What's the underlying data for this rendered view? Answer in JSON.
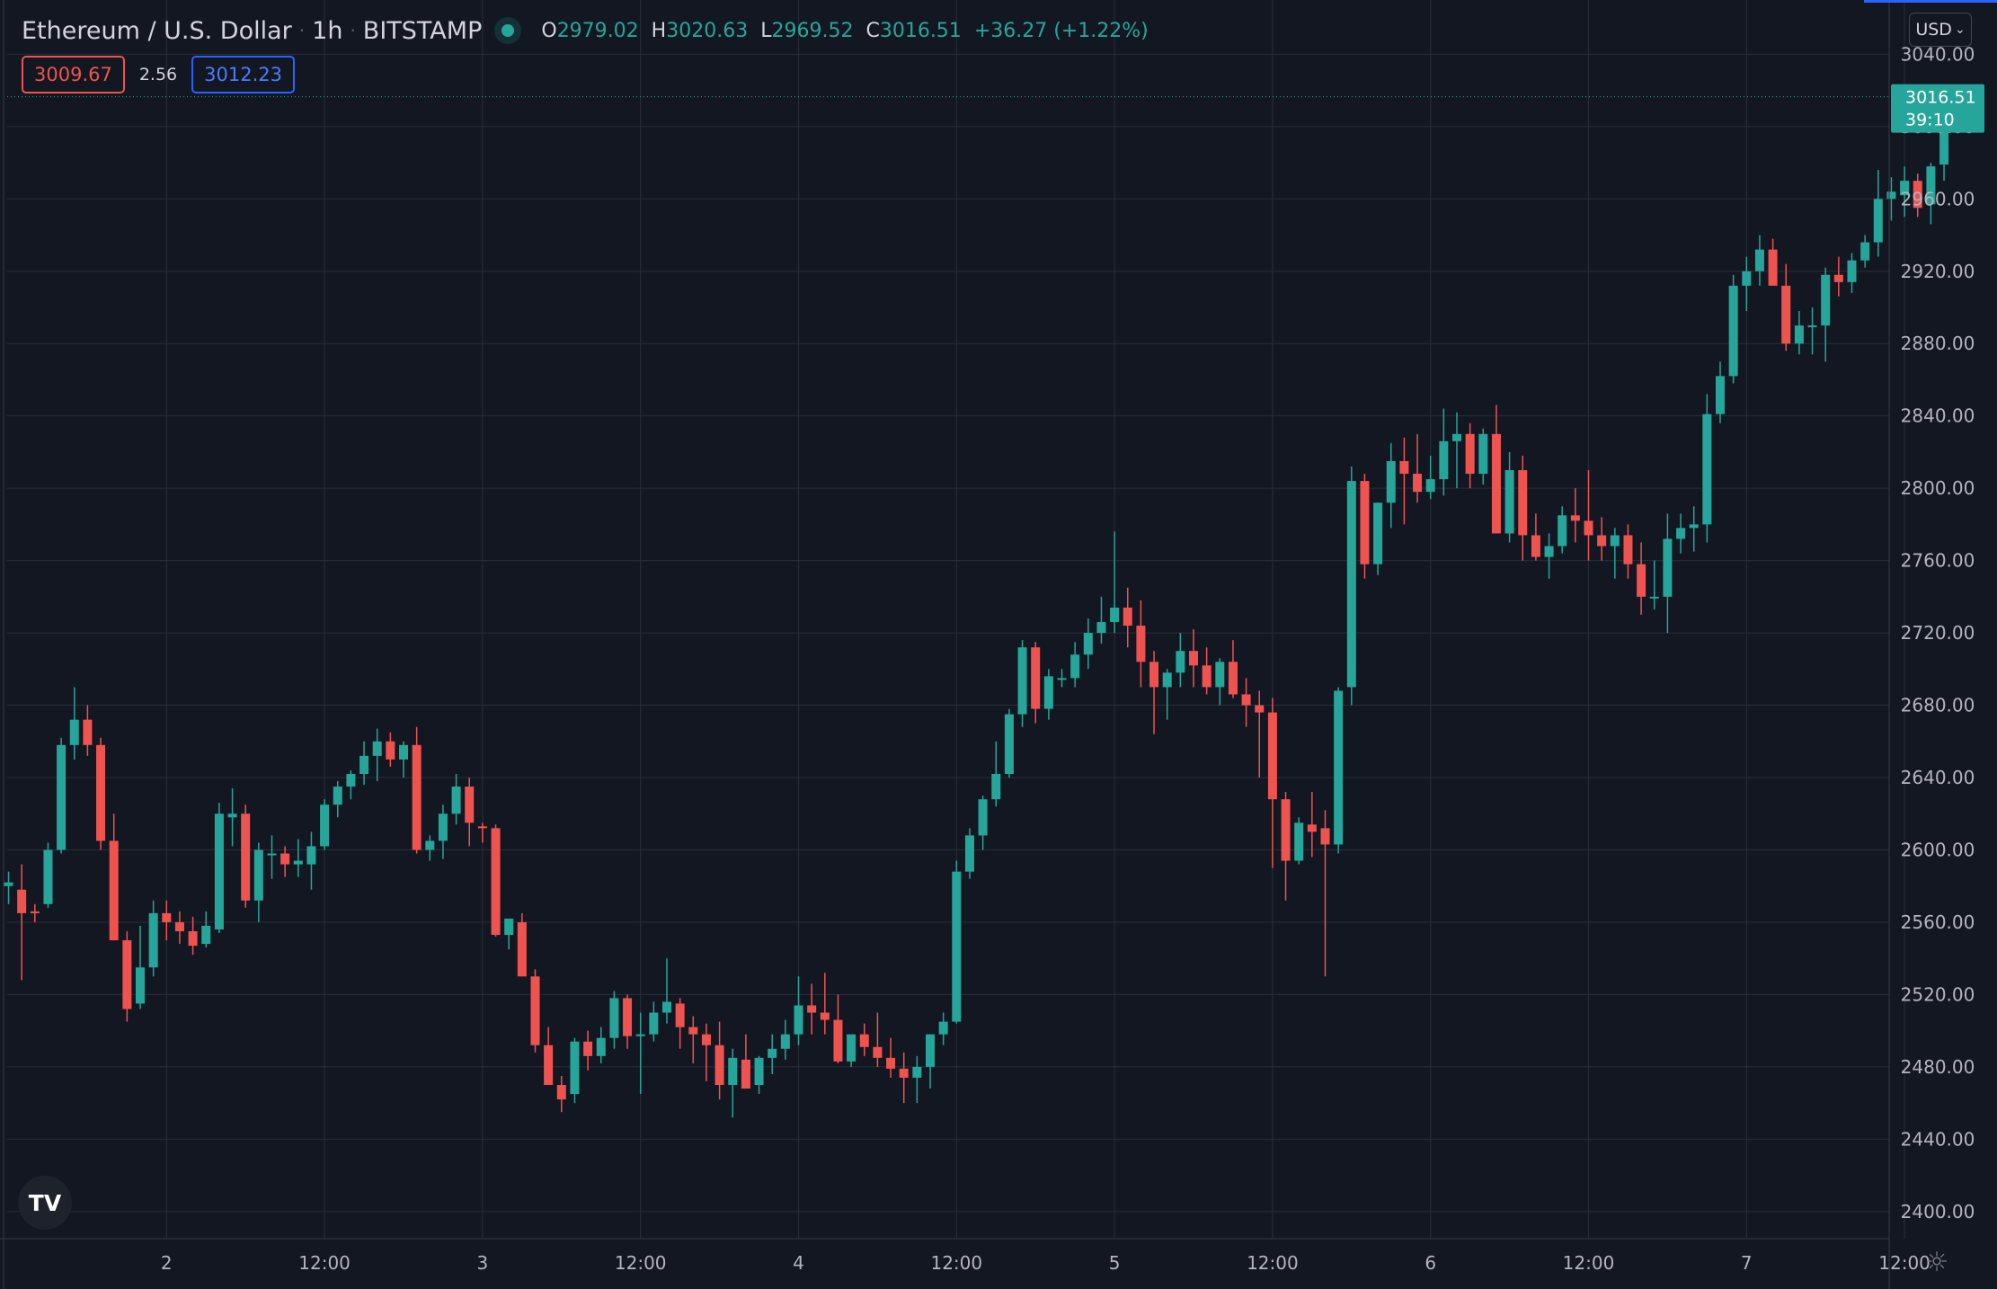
{
  "header": {
    "symbol": "Ethereum / U.S. Dollar",
    "interval": "1h",
    "exchange": "BITSTAMP",
    "open_label": "O",
    "open": "2979.02",
    "high_label": "H",
    "high": "3020.63",
    "low_label": "L",
    "low": "2969.52",
    "close_label": "C",
    "close": "3016.51",
    "change": "+36.27 (+1.22%)"
  },
  "trade": {
    "sell": "3009.67",
    "spread": "2.56",
    "buy": "3012.23"
  },
  "currency_button": "USD",
  "currency_caret": "⌄",
  "last_price": {
    "price": "3016.51",
    "countdown": "39:10"
  },
  "logo_text": "TV",
  "gear_glyph": "☼",
  "colors": {
    "up": "#26a69a",
    "down": "#ef5350",
    "bg": "#131722",
    "grid": "#2a2e39",
    "text": "#b2b5be"
  },
  "chart_data": {
    "type": "candlestick",
    "ylim": [
      2385,
      3070
    ],
    "y_ticks": [
      3040,
      3000,
      2960,
      2920,
      2880,
      2840,
      2800,
      2760,
      2720,
      2680,
      2640,
      2600,
      2560,
      2520,
      2480,
      2440,
      2400
    ],
    "y_tick_labels": [
      "3040.00",
      "3000.00",
      "2960.00",
      "2920.00",
      "2880.00",
      "2840.00",
      "2800.00",
      "2760.00",
      "2720.00",
      "2680.00",
      "2640.00",
      "2600.00",
      "2560.00",
      "2520.00",
      "2480.00",
      "2440.00",
      "2400.00"
    ],
    "x_ticks": [
      {
        "label": "2",
        "bar": 12
      },
      {
        "label": "12:00",
        "bar": 24
      },
      {
        "label": "3",
        "bar": 36
      },
      {
        "label": "12:00",
        "bar": 48
      },
      {
        "label": "4",
        "bar": 60
      },
      {
        "label": "12:00",
        "bar": 72
      },
      {
        "label": "5",
        "bar": 84
      },
      {
        "label": "12:00",
        "bar": 96
      },
      {
        "label": "6",
        "bar": 108
      },
      {
        "label": "12:00",
        "bar": 120
      },
      {
        "label": "7",
        "bar": 132
      },
      {
        "label": "12:00",
        "bar": 144
      }
    ],
    "grid": true,
    "candles": [
      [
        2580,
        2588,
        2570,
        2582
      ],
      [
        2578,
        2592,
        2528,
        2565
      ],
      [
        2566,
        2570,
        2560,
        2565
      ],
      [
        2570,
        2604,
        2568,
        2600
      ],
      [
        2600,
        2662,
        2598,
        2658
      ],
      [
        2658,
        2690,
        2650,
        2672
      ],
      [
        2672,
        2680,
        2652,
        2658
      ],
      [
        2658,
        2662,
        2600,
        2605
      ],
      [
        2605,
        2620,
        2550,
        2550
      ],
      [
        2550,
        2555,
        2505,
        2512
      ],
      [
        2515,
        2558,
        2512,
        2535
      ],
      [
        2535,
        2572,
        2530,
        2565
      ],
      [
        2565,
        2572,
        2550,
        2560
      ],
      [
        2560,
        2566,
        2548,
        2555
      ],
      [
        2555,
        2563,
        2542,
        2547
      ],
      [
        2548,
        2566,
        2546,
        2558
      ],
      [
        2556,
        2626,
        2554,
        2620
      ],
      [
        2618,
        2634,
        2602,
        2620
      ],
      [
        2620,
        2625,
        2568,
        2572
      ],
      [
        2572,
        2604,
        2560,
        2600
      ],
      [
        2598,
        2608,
        2584,
        2598
      ],
      [
        2598,
        2602,
        2585,
        2592
      ],
      [
        2592,
        2606,
        2585,
        2594
      ],
      [
        2592,
        2610,
        2578,
        2602
      ],
      [
        2602,
        2628,
        2600,
        2625
      ],
      [
        2625,
        2638,
        2618,
        2635
      ],
      [
        2635,
        2644,
        2628,
        2642
      ],
      [
        2642,
        2660,
        2636,
        2652
      ],
      [
        2652,
        2667,
        2638,
        2660
      ],
      [
        2660,
        2665,
        2646,
        2650
      ],
      [
        2650,
        2660,
        2640,
        2658
      ],
      [
        2658,
        2668,
        2598,
        2600
      ],
      [
        2600,
        2608,
        2594,
        2605
      ],
      [
        2605,
        2625,
        2595,
        2620
      ],
      [
        2620,
        2642,
        2614,
        2635
      ],
      [
        2635,
        2640,
        2602,
        2615
      ],
      [
        2613,
        2615,
        2604,
        2612
      ],
      [
        2612,
        2614,
        2552,
        2553
      ],
      [
        2553,
        2562,
        2545,
        2562
      ],
      [
        2560,
        2565,
        2530,
        2530
      ],
      [
        2530,
        2534,
        2488,
        2492
      ],
      [
        2492,
        2502,
        2470,
        2470
      ],
      [
        2470,
        2475,
        2455,
        2462
      ],
      [
        2465,
        2496,
        2460,
        2494
      ],
      [
        2494,
        2500,
        2478,
        2486
      ],
      [
        2486,
        2502,
        2482,
        2496
      ],
      [
        2496,
        2522,
        2490,
        2518
      ],
      [
        2518,
        2520,
        2490,
        2497
      ],
      [
        2497,
        2510,
        2465,
        2498
      ],
      [
        2498,
        2516,
        2494,
        2510
      ],
      [
        2510,
        2540,
        2504,
        2516
      ],
      [
        2515,
        2518,
        2490,
        2502
      ],
      [
        2502,
        2508,
        2482,
        2498
      ],
      [
        2498,
        2504,
        2472,
        2492
      ],
      [
        2492,
        2505,
        2462,
        2470
      ],
      [
        2470,
        2490,
        2452,
        2485
      ],
      [
        2484,
        2498,
        2472,
        2468
      ],
      [
        2470,
        2486,
        2465,
        2485
      ],
      [
        2485,
        2498,
        2476,
        2490
      ],
      [
        2490,
        2506,
        2484,
        2498
      ],
      [
        2498,
        2530,
        2492,
        2514
      ],
      [
        2514,
        2526,
        2498,
        2510
      ],
      [
        2510,
        2532,
        2498,
        2506
      ],
      [
        2506,
        2520,
        2482,
        2483
      ],
      [
        2483,
        2494,
        2480,
        2498
      ],
      [
        2498,
        2504,
        2486,
        2491
      ],
      [
        2491,
        2510,
        2480,
        2485
      ],
      [
        2485,
        2496,
        2474,
        2479
      ],
      [
        2479,
        2488,
        2460,
        2474
      ],
      [
        2474,
        2486,
        2460,
        2480
      ],
      [
        2480,
        2498,
        2468,
        2498
      ],
      [
        2498,
        2510,
        2492,
        2505
      ],
      [
        2505,
        2594,
        2504,
        2588
      ],
      [
        2588,
        2612,
        2584,
        2608
      ],
      [
        2608,
        2630,
        2600,
        2628
      ],
      [
        2628,
        2660,
        2624,
        2642
      ],
      [
        2642,
        2678,
        2640,
        2675
      ],
      [
        2675,
        2716,
        2668,
        2712
      ],
      [
        2712,
        2715,
        2670,
        2678
      ],
      [
        2678,
        2700,
        2672,
        2696
      ],
      [
        2695,
        2700,
        2690,
        2695
      ],
      [
        2695,
        2715,
        2690,
        2708
      ],
      [
        2708,
        2728,
        2700,
        2720
      ],
      [
        2720,
        2740,
        2714,
        2726
      ],
      [
        2726,
        2776,
        2720,
        2734
      ],
      [
        2734,
        2745,
        2712,
        2724
      ],
      [
        2724,
        2738,
        2690,
        2704
      ],
      [
        2704,
        2710,
        2664,
        2690
      ],
      [
        2690,
        2700,
        2672,
        2698
      ],
      [
        2698,
        2720,
        2690,
        2710
      ],
      [
        2710,
        2722,
        2690,
        2702
      ],
      [
        2702,
        2712,
        2686,
        2690
      ],
      [
        2690,
        2706,
        2680,
        2704
      ],
      [
        2704,
        2716,
        2684,
        2686
      ],
      [
        2686,
        2695,
        2668,
        2680
      ],
      [
        2680,
        2688,
        2640,
        2676
      ],
      [
        2676,
        2684,
        2590,
        2628
      ],
      [
        2628,
        2632,
        2572,
        2594
      ],
      [
        2594,
        2618,
        2592,
        2615
      ],
      [
        2614,
        2632,
        2596,
        2610
      ],
      [
        2612,
        2622,
        2530,
        2603
      ],
      [
        2603,
        2690,
        2598,
        2688
      ],
      [
        2690,
        2812,
        2680,
        2804
      ],
      [
        2804,
        2808,
        2750,
        2758
      ],
      [
        2758,
        2792,
        2752,
        2792
      ],
      [
        2792,
        2825,
        2778,
        2815
      ],
      [
        2815,
        2828,
        2780,
        2808
      ],
      [
        2808,
        2830,
        2792,
        2798
      ],
      [
        2798,
        2818,
        2794,
        2805
      ],
      [
        2805,
        2844,
        2796,
        2826
      ],
      [
        2826,
        2842,
        2800,
        2830
      ],
      [
        2830,
        2836,
        2800,
        2808
      ],
      [
        2808,
        2833,
        2802,
        2830
      ],
      [
        2830,
        2846,
        2776,
        2775
      ],
      [
        2775,
        2820,
        2770,
        2810
      ],
      [
        2810,
        2818,
        2760,
        2774
      ],
      [
        2774,
        2786,
        2760,
        2762
      ],
      [
        2762,
        2775,
        2750,
        2768
      ],
      [
        2768,
        2790,
        2764,
        2785
      ],
      [
        2785,
        2800,
        2770,
        2782
      ],
      [
        2782,
        2810,
        2760,
        2774
      ],
      [
        2774,
        2784,
        2760,
        2768
      ],
      [
        2768,
        2778,
        2750,
        2774
      ],
      [
        2774,
        2780,
        2750,
        2758
      ],
      [
        2758,
        2770,
        2730,
        2740
      ],
      [
        2740,
        2760,
        2733,
        2740
      ],
      [
        2740,
        2786,
        2720,
        2772
      ],
      [
        2772,
        2786,
        2764,
        2778
      ],
      [
        2778,
        2790,
        2765,
        2780
      ],
      [
        2780,
        2852,
        2770,
        2841
      ],
      [
        2841,
        2870,
        2836,
        2862
      ],
      [
        2862,
        2918,
        2858,
        2912
      ],
      [
        2912,
        2928,
        2898,
        2920
      ],
      [
        2920,
        2940,
        2912,
        2932
      ],
      [
        2932,
        2938,
        2912,
        2912
      ],
      [
        2912,
        2924,
        2876,
        2880
      ],
      [
        2880,
        2898,
        2874,
        2890
      ],
      [
        2890,
        2900,
        2874,
        2890
      ],
      [
        2890,
        2922,
        2870,
        2918
      ],
      [
        2918,
        2928,
        2906,
        2914
      ],
      [
        2914,
        2930,
        2908,
        2926
      ],
      [
        2926,
        2940,
        2922,
        2936
      ],
      [
        2936,
        2976,
        2928,
        2960
      ],
      [
        2960,
        2972,
        2948,
        2964
      ],
      [
        2962,
        2978,
        2950,
        2970
      ],
      [
        2970,
        2974,
        2950,
        2955
      ],
      [
        2957,
        2980,
        2946,
        2978
      ],
      [
        2979,
        3021,
        2970,
        3017
      ]
    ],
    "last_price": 3016.51
  }
}
